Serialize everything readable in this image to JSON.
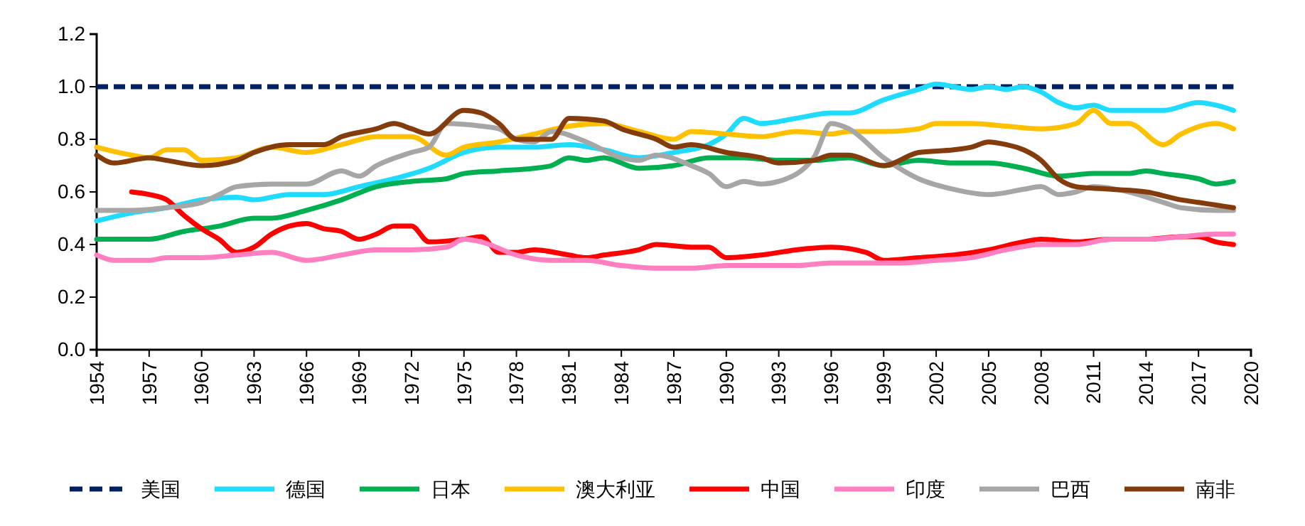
{
  "chart_data": {
    "type": "line",
    "xlim": [
      1954,
      2020
    ],
    "xticks": [
      1954,
      1957,
      1960,
      1963,
      1966,
      1969,
      1972,
      1975,
      1978,
      1981,
      1984,
      1987,
      1990,
      1993,
      1996,
      1999,
      2002,
      2005,
      2008,
      2011,
      2014,
      2017,
      2020
    ],
    "ylim": [
      0,
      1.2
    ],
    "yticks": [
      {
        "value": 0,
        "label": "0.0"
      },
      {
        "value": 0.2,
        "label": "0.2"
      },
      {
        "value": 0.4,
        "label": "0.4"
      },
      {
        "value": 0.6,
        "label": "0.6"
      },
      {
        "value": 0.8,
        "label": "0.8"
      },
      {
        "value": 1,
        "label": "1.0"
      },
      {
        "value": 1.2,
        "label": "1.2"
      }
    ],
    "grid": false,
    "legend": "bottom",
    "marker": "none",
    "series": [
      {
        "name": "美国",
        "color": "#002060",
        "line_style": "dashed",
        "x": [
          1954,
          2019
        ],
        "values": [
          1,
          1
        ]
      },
      {
        "name": "德国",
        "color": "#1fdcff",
        "x": [
          1954,
          1956,
          1958,
          1960,
          1962,
          1963,
          1965,
          1967,
          1969,
          1971,
          1973,
          1975,
          1977,
          1979,
          1981,
          1983,
          1985,
          1987,
          1989,
          1990,
          1991,
          1992,
          1994,
          1996,
          1997,
          1999,
          2001,
          2002,
          2004,
          2005,
          2006,
          2007,
          2008,
          2009,
          2010,
          2011,
          2012,
          2014,
          2015,
          2017,
          2018,
          2019
        ],
        "values": [
          0.49,
          0.52,
          0.54,
          0.57,
          0.58,
          0.57,
          0.59,
          0.59,
          0.62,
          0.65,
          0.69,
          0.75,
          0.77,
          0.77,
          0.78,
          0.76,
          0.73,
          0.75,
          0.78,
          0.82,
          0.88,
          0.86,
          0.88,
          0.9,
          0.9,
          0.95,
          0.99,
          1.01,
          0.99,
          1.0,
          0.99,
          1.0,
          0.98,
          0.94,
          0.92,
          0.93,
          0.91,
          0.91,
          0.91,
          0.94,
          0.93,
          0.91
        ]
      },
      {
        "name": "日本",
        "color": "#00b050",
        "x": [
          1954,
          1957,
          1959,
          1961,
          1963,
          1964,
          1966,
          1968,
          1970,
          1972,
          1974,
          1975,
          1977,
          1979,
          1980,
          1981,
          1982,
          1983,
          1985,
          1987,
          1989,
          1991,
          1993,
          1995,
          1997,
          1999,
          2001,
          2003,
          2005,
          2007,
          2009,
          2011,
          2013,
          2014,
          2015,
          2017,
          2018,
          2019
        ],
        "values": [
          0.42,
          0.42,
          0.45,
          0.47,
          0.5,
          0.5,
          0.53,
          0.57,
          0.62,
          0.64,
          0.65,
          0.67,
          0.68,
          0.69,
          0.7,
          0.73,
          0.72,
          0.73,
          0.69,
          0.7,
          0.73,
          0.73,
          0.72,
          0.72,
          0.73,
          0.7,
          0.72,
          0.71,
          0.71,
          0.69,
          0.66,
          0.67,
          0.67,
          0.68,
          0.67,
          0.65,
          0.63,
          0.64
        ]
      },
      {
        "name": "澳大利亚",
        "color": "#ffc000",
        "x": [
          1954,
          1956,
          1957,
          1958,
          1959,
          1960,
          1962,
          1964,
          1966,
          1968,
          1970,
          1972,
          1974,
          1975,
          1977,
          1979,
          1981,
          1983,
          1985,
          1987,
          1988,
          1990,
          1992,
          1994,
          1996,
          1997,
          1999,
          2001,
          2002,
          2004,
          2006,
          2008,
          2010,
          2011,
          2012,
          2013,
          2015,
          2016,
          2018,
          2019
        ],
        "values": [
          0.77,
          0.74,
          0.73,
          0.76,
          0.76,
          0.72,
          0.73,
          0.77,
          0.75,
          0.78,
          0.81,
          0.81,
          0.74,
          0.77,
          0.79,
          0.82,
          0.85,
          0.86,
          0.83,
          0.8,
          0.83,
          0.82,
          0.81,
          0.83,
          0.82,
          0.83,
          0.83,
          0.84,
          0.86,
          0.86,
          0.85,
          0.84,
          0.86,
          0.91,
          0.86,
          0.86,
          0.78,
          0.82,
          0.86,
          0.84
        ]
      },
      {
        "name": "中国",
        "color": "#ff0000",
        "x": [
          1956,
          1957,
          1958,
          1959,
          1960,
          1961,
          1962,
          1963,
          1964,
          1965,
          1966,
          1967,
          1968,
          1969,
          1970,
          1971,
          1972,
          1973,
          1975,
          1976,
          1977,
          1978,
          1979,
          1981,
          1982,
          1983,
          1985,
          1986,
          1988,
          1989,
          1990,
          1992,
          1994,
          1996,
          1998,
          1999,
          2001,
          2003,
          2005,
          2007,
          2008,
          2010,
          2012,
          2014,
          2016,
          2017,
          2018,
          2019
        ],
        "values": [
          0.6,
          0.59,
          0.57,
          0.51,
          0.46,
          0.42,
          0.37,
          0.39,
          0.44,
          0.47,
          0.48,
          0.46,
          0.45,
          0.42,
          0.44,
          0.47,
          0.47,
          0.41,
          0.42,
          0.43,
          0.37,
          0.37,
          0.38,
          0.36,
          0.35,
          0.36,
          0.38,
          0.4,
          0.39,
          0.39,
          0.35,
          0.36,
          0.38,
          0.39,
          0.37,
          0.34,
          0.35,
          0.36,
          0.38,
          0.41,
          0.42,
          0.41,
          0.42,
          0.42,
          0.43,
          0.43,
          0.41,
          0.4
        ]
      },
      {
        "name": "印度",
        "color": "#ff7fc0",
        "x": [
          1954,
          1955,
          1957,
          1958,
          1960,
          1962,
          1964,
          1966,
          1968,
          1970,
          1972,
          1974,
          1975,
          1976,
          1978,
          1980,
          1982,
          1984,
          1986,
          1988,
          1990,
          1992,
          1994,
          1996,
          1998,
          2000,
          2002,
          2004,
          2006,
          2008,
          2010,
          2012,
          2014,
          2016,
          2018,
          2019
        ],
        "values": [
          0.36,
          0.34,
          0.34,
          0.35,
          0.35,
          0.36,
          0.37,
          0.34,
          0.36,
          0.38,
          0.38,
          0.39,
          0.42,
          0.41,
          0.36,
          0.34,
          0.34,
          0.32,
          0.31,
          0.31,
          0.32,
          0.32,
          0.32,
          0.33,
          0.33,
          0.33,
          0.34,
          0.35,
          0.38,
          0.4,
          0.4,
          0.42,
          0.42,
          0.43,
          0.44,
          0.44
        ]
      },
      {
        "name": "巴西",
        "color": "#a6a6a6",
        "x": [
          1954,
          1956,
          1958,
          1960,
          1961,
          1962,
          1964,
          1966,
          1968,
          1969,
          1970,
          1972,
          1973,
          1974,
          1976,
          1977,
          1978,
          1979,
          1980,
          1982,
          1984,
          1985,
          1986,
          1988,
          1989,
          1990,
          1991,
          1992,
          1993,
          1995,
          1996,
          1997,
          1999,
          2001,
          2003,
          2005,
          2007,
          2008,
          2009,
          2010,
          2011,
          2013,
          2015,
          2016,
          2018,
          2019
        ],
        "values": [
          0.53,
          0.53,
          0.54,
          0.56,
          0.59,
          0.62,
          0.63,
          0.63,
          0.68,
          0.66,
          0.7,
          0.75,
          0.77,
          0.86,
          0.85,
          0.84,
          0.8,
          0.79,
          0.83,
          0.79,
          0.73,
          0.72,
          0.74,
          0.7,
          0.67,
          0.62,
          0.64,
          0.63,
          0.64,
          0.73,
          0.86,
          0.84,
          0.73,
          0.65,
          0.61,
          0.59,
          0.61,
          0.62,
          0.59,
          0.6,
          0.62,
          0.6,
          0.56,
          0.54,
          0.53,
          0.53
        ]
      },
      {
        "name": "南非",
        "color": "#843c0c",
        "x": [
          1954,
          1955,
          1957,
          1958,
          1960,
          1962,
          1963,
          1965,
          1967,
          1968,
          1970,
          1971,
          1972,
          1973,
          1975,
          1976,
          1977,
          1978,
          1980,
          1981,
          1983,
          1984,
          1986,
          1987,
          1988,
          1990,
          1992,
          1993,
          1995,
          1996,
          1997,
          1999,
          2001,
          2003,
          2004,
          2005,
          2006,
          2007,
          2008,
          2009,
          2010,
          2012,
          2014,
          2016,
          2017,
          2018,
          2019
        ],
        "values": [
          0.74,
          0.71,
          0.73,
          0.72,
          0.7,
          0.72,
          0.75,
          0.78,
          0.78,
          0.81,
          0.84,
          0.86,
          0.84,
          0.82,
          0.91,
          0.9,
          0.86,
          0.8,
          0.8,
          0.88,
          0.87,
          0.84,
          0.8,
          0.77,
          0.78,
          0.75,
          0.73,
          0.71,
          0.72,
          0.74,
          0.74,
          0.7,
          0.75,
          0.76,
          0.77,
          0.79,
          0.78,
          0.76,
          0.72,
          0.65,
          0.62,
          0.61,
          0.6,
          0.57,
          0.56,
          0.55,
          0.54
        ]
      }
    ]
  }
}
